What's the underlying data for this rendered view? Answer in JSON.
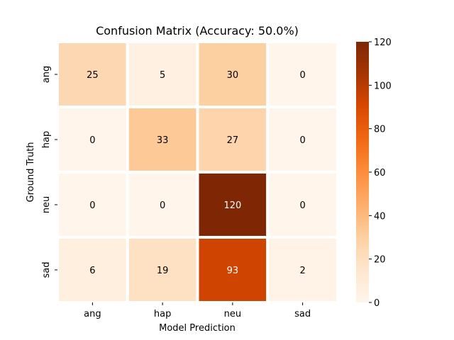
{
  "chart_data": {
    "type": "heatmap",
    "title": "Confusion Matrix (Accuracy: 50.0%)",
    "xlabel": "Model Prediction",
    "ylabel": "Ground Truth",
    "x_categories": [
      "ang",
      "hap",
      "neu",
      "sad"
    ],
    "y_categories": [
      "ang",
      "hap",
      "neu",
      "sad"
    ],
    "values": [
      [
        25,
        5,
        30,
        0
      ],
      [
        0,
        33,
        27,
        0
      ],
      [
        0,
        0,
        120,
        0
      ],
      [
        6,
        19,
        93,
        2
      ]
    ],
    "colorbar": {
      "range": [
        0,
        120
      ],
      "ticks": [
        0,
        20,
        40,
        60,
        80,
        100,
        120
      ],
      "colormap": "Oranges",
      "low_color": "#fff5eb",
      "high_color": "#7f2704"
    },
    "cell_separator_color": "#ffffff"
  }
}
